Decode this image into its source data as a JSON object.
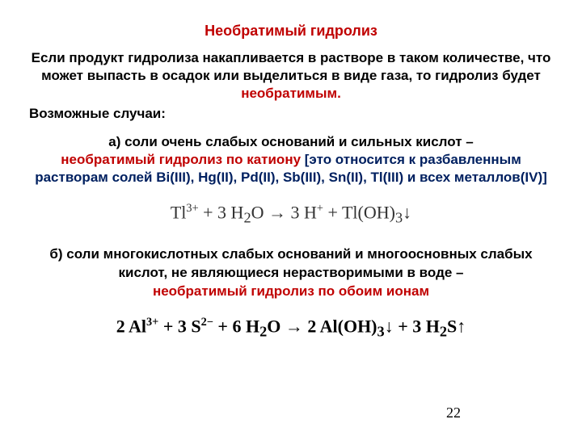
{
  "title": {
    "text": "Необратимый гидролиз",
    "color": "#c00000"
  },
  "para1": {
    "pre": "Если продукт гидролиза накапливается в растворе в таком количестве, что может выпасть в осадок или выделиться в виде газа, то гидролиз будет ",
    "highlight": "необратимым.",
    "highlight_color": "#c00000"
  },
  "cases_label": "Возможные случаи:",
  "case_a": {
    "lead": "а) соли очень слабых оснований и сильных  кислот –",
    "red": "необратимый гидролиз по катиону ",
    "blue": "[это относится к разбавленным растворам солей Bi(III), Hg(II), Pd(II), Sb(III), Sn(II), Tl(III) и всех металлов(IV)]",
    "blue_color": "#002060",
    "red_color": "#c00000"
  },
  "equation1": {
    "lhs_species": "Tl",
    "lhs_charge": "3+",
    "plus1": " + 3 H",
    "h2o_sub": "2",
    "h2o_tail": "O → 3 H",
    "h_charge": "+",
    "rhs_plus": " + Tl(OH)",
    "rhs_sub": "3",
    "arrow_down": "↓"
  },
  "case_b": {
    "text": "б) соли многокислотных слабых оснований и многоосновных слабых кислот, не являющиеся нерастворимыми в воде  –",
    "red": "необратимый гидролиз по обоим ионам",
    "red_color": "#c00000"
  },
  "equation2": {
    "c1": "2 Al",
    "al_charge": "3+",
    "c2": " + 3 S",
    "s_charge": "2−",
    "c3": " + 6 H",
    "h2o_sub": "2",
    "c4": "O → 2 Al(OH)",
    "aloh_sub": "3",
    "down": "↓",
    "c5": " + 3 H",
    "h2s_sub": "2",
    "c6": "S",
    "up": "↑"
  },
  "pagenum": "22",
  "colors": {
    "text": "#000000",
    "background": "#ffffff"
  }
}
